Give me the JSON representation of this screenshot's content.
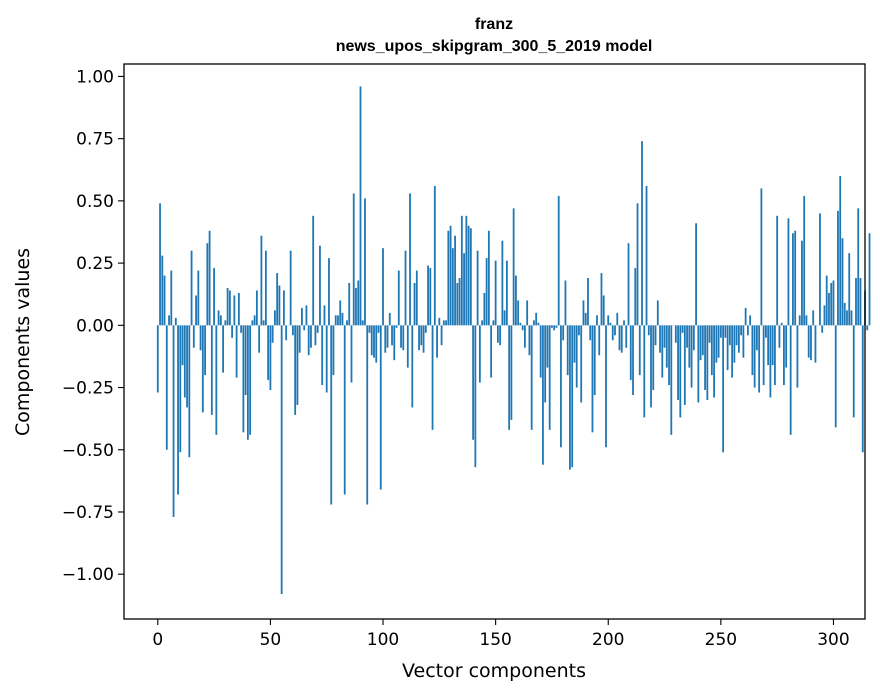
{
  "chart_data": {
    "type": "bar",
    "title_line1": "franz",
    "title_line2": "news_upos_skipgram_300_5_2019 model",
    "xlabel": "Vector components",
    "ylabel": "Components values",
    "xlim": [
      -15,
      314
    ],
    "ylim": [
      -1.18,
      1.05
    ],
    "xticks": [
      0,
      50,
      100,
      150,
      200,
      250,
      300
    ],
    "xtick_labels": [
      "0",
      "50",
      "100",
      "150",
      "200",
      "250",
      "300"
    ],
    "yticks": [
      1.0,
      0.75,
      0.5,
      0.25,
      0.0,
      -0.25,
      -0.5,
      -0.75,
      -1.0
    ],
    "ytick_labels": [
      "1.00",
      "0.75",
      "0.50",
      "0.25",
      "0.00",
      "−0.25",
      "−0.50",
      "−0.75",
      "−1.00"
    ],
    "grid": false,
    "bar_color": "#1f77b4",
    "values": [
      -0.27,
      0.49,
      0.28,
      0.2,
      -0.5,
      0.04,
      0.22,
      -0.77,
      0.03,
      -0.68,
      -0.51,
      -0.16,
      -0.29,
      -0.33,
      -0.53,
      0.3,
      -0.09,
      0.12,
      0.22,
      -0.1,
      -0.35,
      -0.2,
      0.33,
      0.38,
      -0.36,
      0.23,
      -0.44,
      0.06,
      0.04,
      -0.19,
      0.02,
      0.15,
      0.14,
      -0.05,
      0.12,
      -0.21,
      0.13,
      -0.03,
      -0.43,
      -0.28,
      -0.46,
      -0.44,
      0.02,
      0.04,
      0.14,
      -0.11,
      0.36,
      0.02,
      0.3,
      -0.22,
      -0.26,
      -0.07,
      0.06,
      0.21,
      0.16,
      -1.08,
      0.14,
      -0.06,
      0.0,
      0.3,
      -0.04,
      -0.36,
      -0.32,
      -0.11,
      0.07,
      -0.02,
      0.08,
      -0.12,
      -0.09,
      0.44,
      -0.08,
      -0.03,
      0.32,
      -0.24,
      0.08,
      -0.27,
      0.27,
      -0.72,
      -0.2,
      0.04,
      0.04,
      0.1,
      0.05,
      -0.68,
      0.02,
      0.17,
      -0.23,
      0.53,
      0.15,
      0.18,
      0.96,
      0.02,
      0.51,
      -0.72,
      -0.03,
      -0.12,
      -0.13,
      -0.15,
      -0.03,
      -0.66,
      0.31,
      -0.11,
      -0.09,
      0.05,
      -0.08,
      -0.14,
      -0.01,
      0.22,
      -0.09,
      -0.1,
      0.3,
      -0.17,
      0.53,
      -0.33,
      0.17,
      0.22,
      -0.1,
      -0.08,
      -0.11,
      -0.03,
      0.24,
      0.23,
      -0.42,
      0.56,
      -0.13,
      0.03,
      -0.08,
      0.02,
      0.02,
      0.38,
      0.4,
      0.31,
      0.36,
      0.17,
      0.19,
      0.44,
      0.29,
      0.44,
      0.4,
      0.39,
      -0.46,
      -0.57,
      0.3,
      -0.23,
      0.02,
      0.13,
      0.27,
      0.38,
      -0.21,
      0.02,
      0.26,
      -0.07,
      -0.08,
      0.34,
      0.06,
      0.26,
      -0.42,
      -0.38,
      0.47,
      0.2,
      0.1,
      0.01,
      -0.02,
      -0.09,
      0.1,
      -0.12,
      -0.42,
      0.02,
      0.05,
      0.01,
      -0.21,
      -0.56,
      -0.31,
      -0.17,
      -0.42,
      -0.01,
      -0.02,
      -0.01,
      0.52,
      -0.49,
      -0.06,
      0.18,
      -0.2,
      -0.58,
      -0.57,
      -0.15,
      -0.25,
      -0.04,
      -0.31,
      0.1,
      0.05,
      0.19,
      -0.06,
      -0.43,
      -0.28,
      0.04,
      -0.12,
      0.21,
      0.12,
      -0.49,
      0.04,
      0.01,
      -0.06,
      -0.04,
      0.05,
      -0.1,
      -0.11,
      0.02,
      -0.09,
      0.33,
      -0.22,
      -0.28,
      0.23,
      0.49,
      -0.2,
      0.74,
      -0.37,
      0.56,
      -0.04,
      -0.33,
      -0.26,
      -0.08,
      0.1,
      -0.11,
      -0.21,
      -0.09,
      -0.17,
      -0.24,
      -0.44,
      0.0,
      -0.07,
      -0.3,
      -0.37,
      -0.03,
      -0.32,
      -0.09,
      -0.17,
      -0.25,
      -0.1,
      0.41,
      -0.31,
      -0.14,
      -0.12,
      -0.26,
      -0.3,
      -0.07,
      -0.2,
      -0.29,
      -0.15,
      -0.13,
      -0.05,
      -0.51,
      -0.05,
      -0.18,
      -0.08,
      -0.21,
      -0.15,
      -0.08,
      -0.11,
      -0.04,
      -0.13,
      0.07,
      -0.04,
      0.04,
      -0.2,
      -0.25,
      -0.1,
      -0.27,
      0.55,
      -0.24,
      -0.05,
      -0.16,
      -0.29,
      -0.16,
      -0.24,
      0.44,
      -0.09,
      0.01,
      -0.24,
      -0.17,
      0.43,
      -0.44,
      0.37,
      0.38,
      -0.25,
      0.04,
      0.34,
      0.52,
      0.04,
      -0.13,
      -0.14,
      0.06,
      -0.15,
      0.0,
      0.45,
      -0.03,
      0.08,
      0.2,
      0.13,
      0.17,
      0.18,
      -0.41,
      0.46,
      0.6,
      0.35,
      0.09,
      0.06,
      0.29,
      0.06,
      -0.37,
      0.19,
      0.47,
      0.19,
      -0.51,
      0.14,
      -0.02,
      0.37
    ]
  }
}
